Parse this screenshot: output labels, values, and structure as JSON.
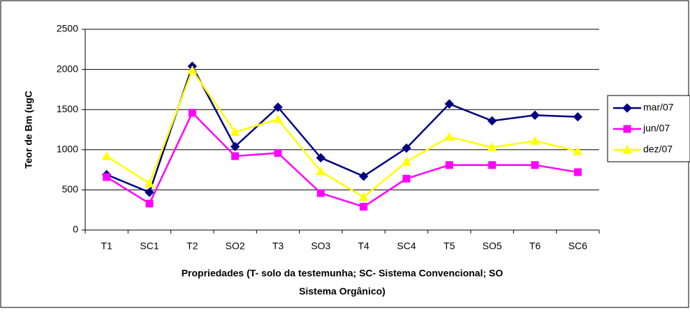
{
  "chart_data": {
    "type": "line",
    "ylabel": "Teor de Bm (ugC",
    "xlabel": [
      "Propriedades (T- solo da testemunha; SC- Sistema Convencional; SO",
      "Sistema Orgânico)"
    ],
    "categories": [
      "T1",
      "SC1",
      "T2",
      "SO2",
      "T3",
      "SO3",
      "T4",
      "SC4",
      "T5",
      "SO5",
      "T6",
      "SC6"
    ],
    "series": [
      {
        "name": "mar/07",
        "color": "#000080",
        "marker": "diamond",
        "values": [
          690,
          470,
          2040,
          1040,
          1530,
          900,
          670,
          1020,
          1570,
          1360,
          1430,
          1410
        ]
      },
      {
        "name": "jun/07",
        "color": "#ff00ff",
        "marker": "square",
        "values": [
          660,
          330,
          1460,
          920,
          960,
          460,
          290,
          640,
          810,
          810,
          810,
          720
        ]
      },
      {
        "name": "dez/07",
        "color": "#ffff00",
        "marker": "triangle",
        "values": [
          920,
          580,
          1990,
          1220,
          1380,
          730,
          410,
          850,
          1160,
          1030,
          1110,
          980
        ]
      }
    ],
    "ylim": [
      0,
      2500
    ],
    "yticks": [
      0,
      500,
      1000,
      1500,
      2000,
      2500
    ],
    "grid": true,
    "legend": "right"
  }
}
